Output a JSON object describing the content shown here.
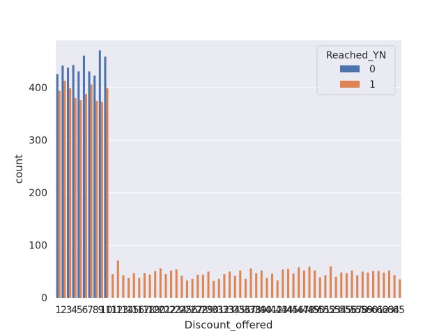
{
  "chart_data": {
    "type": "bar",
    "xlabel": "Discount_offered",
    "ylabel": "count",
    "ylim": [
      0,
      490
    ],
    "yticks": [
      0,
      100,
      200,
      300,
      400
    ],
    "grid": true,
    "legend": {
      "title": "Reached_YN",
      "placement": "top-right"
    },
    "categories": [
      "1",
      "2",
      "3",
      "4",
      "5",
      "6",
      "7",
      "8",
      "9",
      "10",
      "11",
      "12",
      "13",
      "14",
      "15",
      "16",
      "17",
      "18",
      "19",
      "20",
      "21",
      "22",
      "23",
      "24",
      "25",
      "26",
      "27",
      "28",
      "29",
      "30",
      "31",
      "32",
      "33",
      "34",
      "35",
      "36",
      "37",
      "38",
      "39",
      "40",
      "41",
      "42",
      "43",
      "44",
      "45",
      "46",
      "47",
      "48",
      "49",
      "50",
      "51",
      "52",
      "53",
      "54",
      "55",
      "56",
      "57",
      "58",
      "59",
      "60",
      "61",
      "62",
      "63",
      "64",
      "65"
    ],
    "series": [
      {
        "name": "0",
        "color": "#4c72b0",
        "values": [
          426,
          442,
          438,
          443,
          431,
          461,
          431,
          423,
          471,
          459,
          0,
          0,
          0,
          0,
          0,
          0,
          0,
          0,
          0,
          0,
          0,
          0,
          0,
          0,
          0,
          0,
          0,
          0,
          0,
          0,
          0,
          0,
          0,
          0,
          0,
          0,
          0,
          0,
          0,
          0,
          0,
          0,
          0,
          0,
          0,
          0,
          0,
          0,
          0,
          0,
          0,
          0,
          0,
          0,
          0,
          0,
          0,
          0,
          0,
          0,
          0,
          0,
          0,
          0,
          0
        ]
      },
      {
        "name": "1",
        "color": "#dd8452",
        "values": [
          394,
          413,
          399,
          380,
          376,
          388,
          406,
          375,
          373,
          399,
          45,
          71,
          43,
          38,
          47,
          38,
          47,
          44,
          51,
          56,
          45,
          52,
          54,
          42,
          33,
          36,
          44,
          44,
          50,
          32,
          36,
          45,
          50,
          42,
          52,
          36,
          56,
          47,
          52,
          38,
          46,
          33,
          54,
          55,
          46,
          58,
          52,
          59,
          52,
          39,
          43,
          60,
          40,
          48,
          47,
          52,
          43,
          50,
          48,
          51,
          51,
          48,
          52,
          43,
          35
        ]
      }
    ]
  }
}
